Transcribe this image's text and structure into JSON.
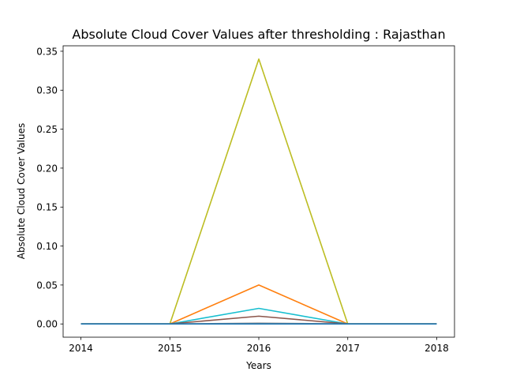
{
  "chart_data": {
    "type": "line",
    "title": "Absolute Cloud Cover Values after thresholding : Rajasthan",
    "xlabel": "Years",
    "ylabel": "Absolute Cloud Cover Values",
    "x": [
      2014,
      2015,
      2016,
      2017,
      2018
    ],
    "xticks": [
      "2014",
      "2015",
      "2016",
      "2017",
      "2018"
    ],
    "yticks": [
      "0.00",
      "0.05",
      "0.10",
      "0.15",
      "0.20",
      "0.25",
      "0.30",
      "0.35"
    ],
    "ylim": [
      -0.017,
      0.357
    ],
    "xlim": [
      2013.8,
      2018.2
    ],
    "grid": false,
    "legend": "none",
    "series": [
      {
        "color": "#bcbd22",
        "values": [
          0,
          0,
          0.34,
          0,
          0
        ]
      },
      {
        "color": "#ff7f0e",
        "values": [
          0,
          0,
          0.05,
          0,
          0
        ]
      },
      {
        "color": "#17becf",
        "values": [
          0,
          0,
          0.02,
          0,
          0
        ]
      },
      {
        "color": "#8c564b",
        "values": [
          0,
          0,
          0.01,
          0,
          0
        ]
      },
      {
        "color": "#7f7f7f",
        "values": [
          0,
          0,
          0.001,
          0,
          0
        ]
      },
      {
        "color": "#1f77b4",
        "values": [
          0,
          0,
          0,
          0,
          0
        ]
      }
    ]
  }
}
